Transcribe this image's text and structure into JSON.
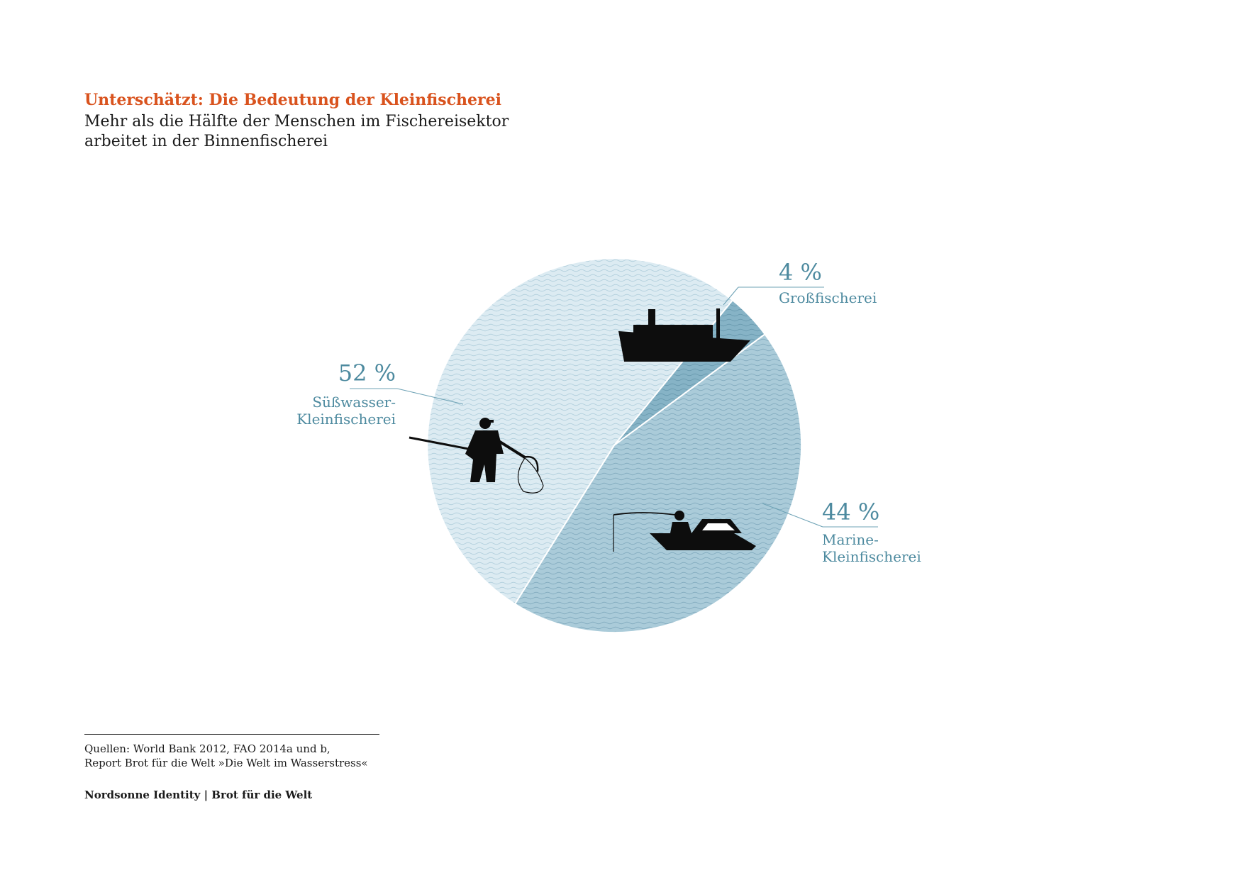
{
  "header": {
    "title": "Unterschätzt: Die Bedeutung der Kleinfischerei",
    "subtitle_line1": "Mehr als die Hälfte der Menschen im Fischereisektor",
    "subtitle_line2": "arbeitet in der Binnenfischerei"
  },
  "chart_data": {
    "type": "pie",
    "title": "Unterschätzt: Die Bedeutung der Kleinfischerei",
    "start_angle_deg": 212,
    "slices": [
      {
        "key": "suesswasser",
        "value": 52,
        "value_label": "52 %",
        "label_lines": [
          "Süßwasser-",
          "Kleinfischerei"
        ],
        "color": "#dcebf2",
        "icon": "net-fisher-icon"
      },
      {
        "key": "gross",
        "value": 4,
        "value_label": "4 %",
        "label_lines": [
          "Großfischerei"
        ],
        "color": "#86b3c6",
        "icon": "ship-icon"
      },
      {
        "key": "marine",
        "value": 44,
        "value_label": "44 %",
        "label_lines": [
          "Marine-",
          "Kleinfischerei"
        ],
        "color": "#aacbd9",
        "icon": "motorboat-fisher-icon"
      }
    ]
  },
  "footer": {
    "sources_line1": "Quellen: World Bank 2012, FAO 2014a und b,",
    "sources_line2": "Report Brot für die Welt »Die Welt im Wasserstress«",
    "credits": "Nordsonne Identity | Brot für die Welt"
  }
}
